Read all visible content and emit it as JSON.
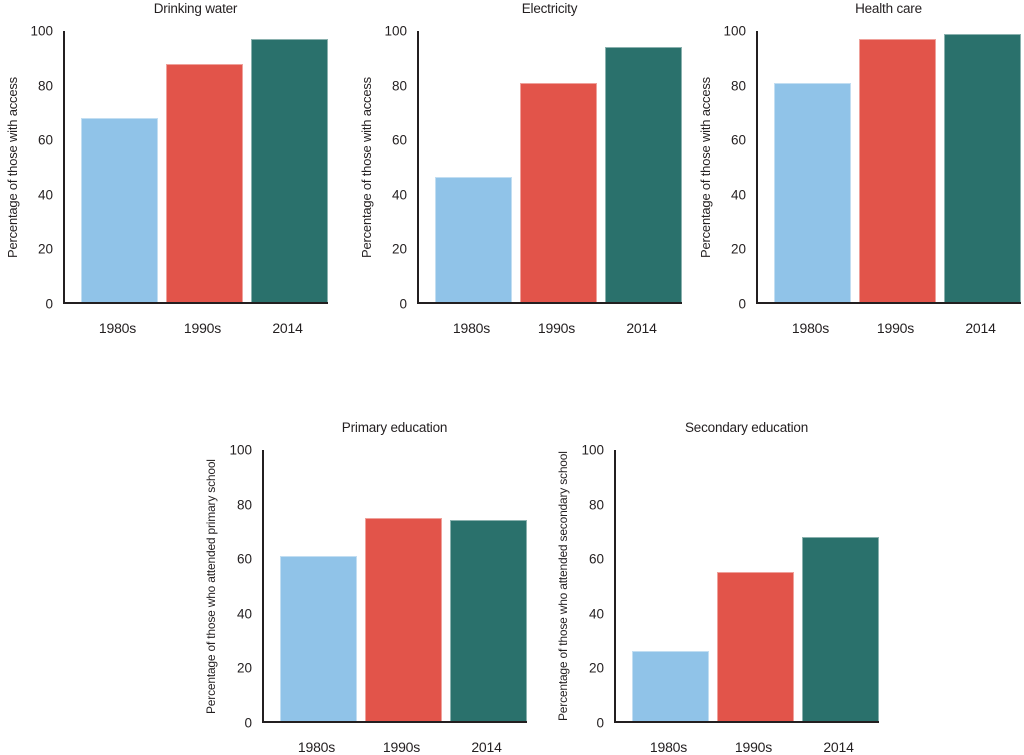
{
  "figure": {
    "background": "#ffffff"
  },
  "colors": {
    "axis": "#231f20",
    "text": "#231f20",
    "series": [
      "#90C3E8",
      "#E2544A",
      "#2A716C"
    ]
  },
  "series_legend": [
    "1980s",
    "1990s",
    "2014"
  ],
  "y_axis": {
    "tick_labels_desc": [
      "100",
      "80",
      "60",
      "40",
      "20",
      "0"
    ]
  },
  "chart_data": [
    {
      "type": "bar",
      "title": "Drinking water",
      "xlabel": "",
      "ylabel": "Percentage of those with access",
      "categories": [
        "1980s",
        "1990s",
        "2014"
      ],
      "values": [
        68,
        88,
        97
      ],
      "ylim": [
        0,
        100
      ],
      "yticks": [
        0,
        20,
        40,
        60,
        80,
        100
      ],
      "grid": false,
      "legend": false,
      "bar_colors": [
        "#90C3E8",
        "#E2544A",
        "#2A716C"
      ],
      "panel": "top-left"
    },
    {
      "type": "bar",
      "title": "Electricity",
      "xlabel": "",
      "ylabel": "Percentage of those with access",
      "categories": [
        "1980s",
        "1990s",
        "2014"
      ],
      "values": [
        46,
        81,
        94
      ],
      "ylim": [
        0,
        100
      ],
      "yticks": [
        0,
        20,
        40,
        60,
        80,
        100
      ],
      "grid": false,
      "legend": false,
      "bar_colors": [
        "#90C3E8",
        "#E2544A",
        "#2A716C"
      ],
      "panel": "top-center"
    },
    {
      "type": "bar",
      "title": "Health care",
      "xlabel": "",
      "ylabel": "Percentage of those with access",
      "categories": [
        "1980s",
        "1990s",
        "2014"
      ],
      "values": [
        81,
        97,
        99
      ],
      "ylim": [
        0,
        100
      ],
      "yticks": [
        0,
        20,
        40,
        60,
        80,
        100
      ],
      "grid": false,
      "legend": false,
      "bar_colors": [
        "#90C3E8",
        "#E2544A",
        "#2A716C"
      ],
      "panel": "top-right"
    },
    {
      "type": "bar",
      "title": "Primary education",
      "xlabel": "",
      "ylabel": "Percentage of those who attended primary school",
      "categories": [
        "1980s",
        "1990s",
        "2014"
      ],
      "values": [
        61,
        75,
        74
      ],
      "ylim": [
        0,
        100
      ],
      "yticks": [
        0,
        20,
        40,
        60,
        80,
        100
      ],
      "grid": false,
      "legend": false,
      "bar_colors": [
        "#90C3E8",
        "#E2544A",
        "#2A716C"
      ],
      "panel": "bottom-left"
    },
    {
      "type": "bar",
      "title": "Secondary education",
      "xlabel": "",
      "ylabel": "Percentage of those who attended secondary school",
      "categories": [
        "1980s",
        "1990s",
        "2014"
      ],
      "values": [
        26,
        55,
        68
      ],
      "ylim": [
        0,
        100
      ],
      "yticks": [
        0,
        20,
        40,
        60,
        80,
        100
      ],
      "grid": false,
      "legend": false,
      "bar_colors": [
        "#90C3E8",
        "#E2544A",
        "#2A716C"
      ],
      "panel": "bottom-right"
    }
  ]
}
